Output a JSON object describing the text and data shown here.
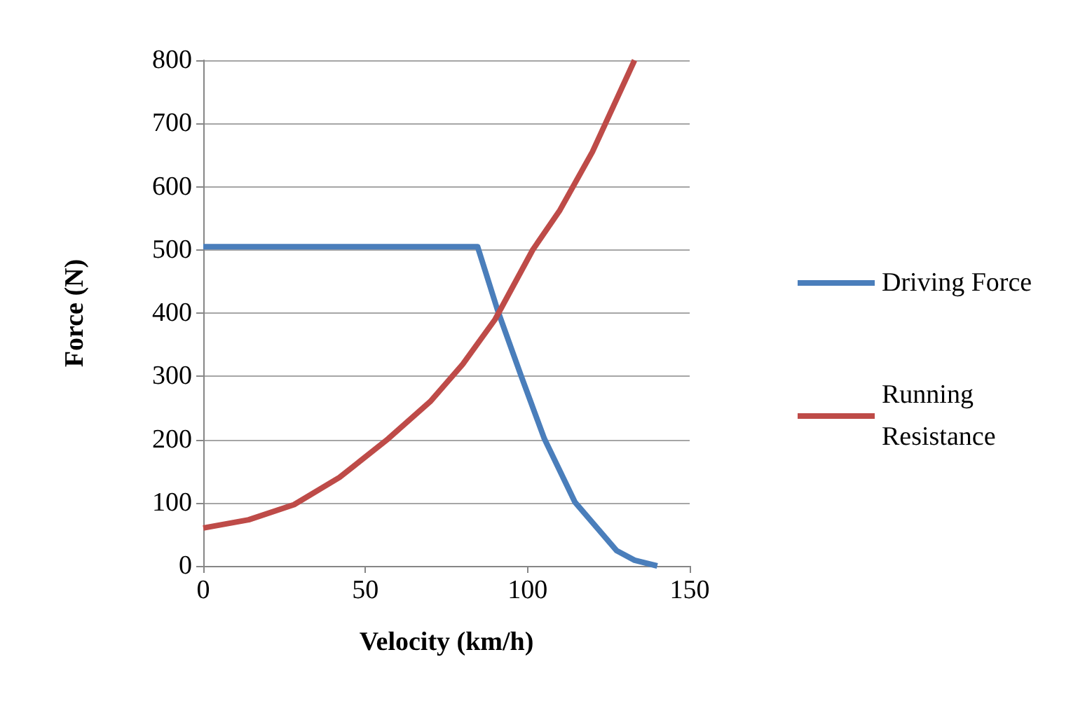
{
  "chart_data": {
    "type": "line",
    "xlabel": "Velocity (km/h)",
    "ylabel": "Force (N)",
    "xlim": [
      0,
      150
    ],
    "xticks": [
      0,
      50,
      100,
      150
    ],
    "ylim": [
      0,
      800
    ],
    "yticks": [
      0,
      100,
      200,
      300,
      400,
      500,
      600,
      700,
      800
    ],
    "grid": "y",
    "legend": "right",
    "marker": "none",
    "line_style": "solid",
    "series": [
      {
        "name": "Driving Force",
        "color": "#4a7ebb",
        "x": [
          0,
          84.6,
          90.8,
          98,
          105.2,
          114.6,
          127.5,
          133,
          140
        ],
        "values": [
          505,
          505,
          404,
          301,
          201,
          101,
          24,
          9,
          0
        ]
      },
      {
        "name": "Running Resistance",
        "color": "#be4b48",
        "x": [
          0,
          14,
          28,
          42,
          57,
          70,
          80,
          90,
          101.6,
          110,
          120,
          133
        ],
        "values": [
          60,
          73,
          97,
          140,
          201,
          260,
          319,
          390,
          500,
          563,
          655,
          800
        ]
      }
    ]
  }
}
